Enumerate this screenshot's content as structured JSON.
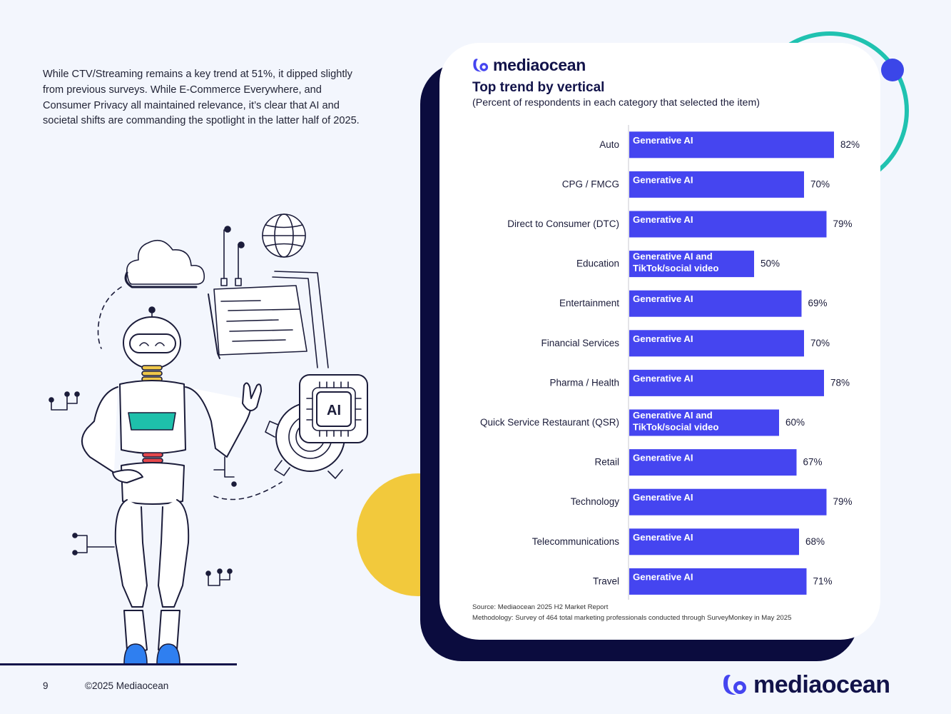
{
  "intro_text": "While CTV/Streaming remains a key trend at 51%, it dipped slightly from previous surveys. While E-Commerce Everywhere, and Consumer Privacy all maintained relevance, it’s clear that AI and societal shifts are commanding the spotlight in the latter half of 2025.",
  "brand": {
    "name": "mediaocean",
    "primary_color": "#12134a",
    "accent_color": "#4545f0"
  },
  "illustration": {
    "chip_label": "AI"
  },
  "footer": {
    "page_number": "9",
    "copyright": "©2025 Mediaocean"
  },
  "card": {
    "source": "Source: Mediaocean 2025 H2 Market Report",
    "methodology": "Methodology: Survey of 464 total marketing professionals conducted through SurveyMonkey in May 2025"
  },
  "chart_data": {
    "type": "bar",
    "orientation": "horizontal",
    "title": "Top trend by vertical",
    "subtitle": "(Percent of respondents in each category that selected the item)",
    "bar_color": "#4545f0",
    "xlim": [
      0,
      100
    ],
    "categories": [
      "Auto",
      "CPG / FMCG",
      "Direct to Consumer (DTC)",
      "Education",
      "Entertainment",
      "Financial Services",
      "Pharma / Health",
      "Quick Service Restaurant (QSR)",
      "Retail",
      "Technology",
      "Telecommunications",
      "Travel"
    ],
    "values": [
      82,
      70,
      79,
      50,
      69,
      70,
      78,
      60,
      67,
      79,
      68,
      71
    ],
    "value_labels": [
      "82%",
      "70%",
      "79%",
      "50%",
      "69%",
      "70%",
      "78%",
      "60%",
      "67%",
      "79%",
      "68%",
      "71%"
    ],
    "bar_labels": [
      [
        "Generative AI"
      ],
      [
        "Generative AI"
      ],
      [
        "Generative AI"
      ],
      [
        "Generative AI and",
        "TikTok/social video"
      ],
      [
        "Generative AI"
      ],
      [
        "Generative AI"
      ],
      [
        "Generative AI"
      ],
      [
        "Generative AI and",
        "TikTok/social video"
      ],
      [
        "Generative AI"
      ],
      [
        "Generative AI"
      ],
      [
        "Generative AI"
      ],
      [
        "Generative AI"
      ]
    ]
  }
}
